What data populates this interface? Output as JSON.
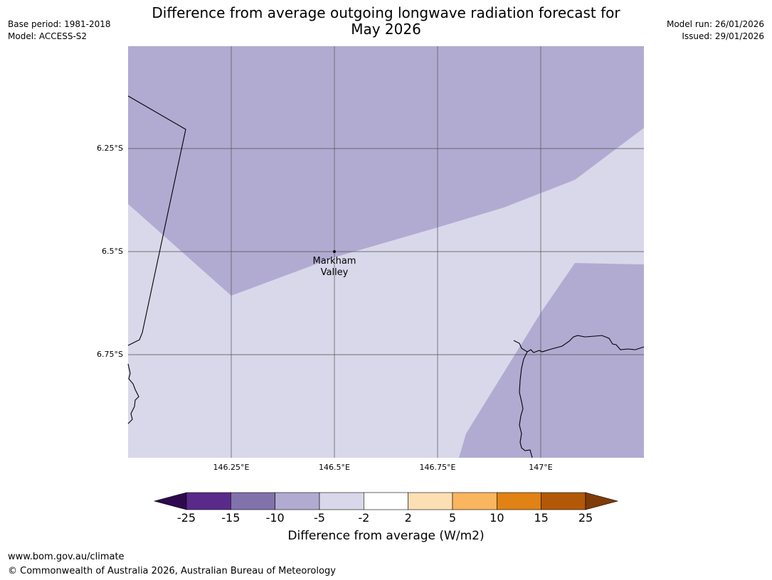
{
  "header": {
    "base_period": "Base period: 1981-2018",
    "model": "Model: ACCESS-S2",
    "model_run": "Model run: 26/01/2026",
    "issued": "Issued: 29/01/2026",
    "title_line1": "Difference from average outgoing longwave radiation forecast for",
    "title_line2": "May 2026"
  },
  "map": {
    "place_label_line1": "Markham",
    "place_label_line2": "Valley",
    "lat_labels": [
      "6.25°S",
      "6.5°S",
      "6.75°S"
    ],
    "lon_labels": [
      "146.25°E",
      "146.5°E",
      "146.75°E",
      "147°E"
    ],
    "colors": {
      "band_minus10_minus5": "#b1abd2",
      "band_minus5_minus2": "#d8d8ea",
      "gridline": "#555555",
      "coastline": "#000000"
    }
  },
  "colorbar": {
    "label": "Difference from average (W/m2)",
    "ticks": [
      "-25",
      "-15",
      "-10",
      "-5",
      "-2",
      "2",
      "5",
      "10",
      "15",
      "25"
    ],
    "colors": [
      "#2d0a4e",
      "#5a2a8a",
      "#8272ac",
      "#b1abd2",
      "#d8d8ea",
      "#ffffff",
      "#fddfb4",
      "#fab55f",
      "#e08214",
      "#b35806",
      "#7f3b08"
    ]
  },
  "footer": {
    "url": "www.bom.gov.au/climate",
    "copyright": "© Commonwealth of Australia 2026, Australian Bureau of Meteorology"
  }
}
